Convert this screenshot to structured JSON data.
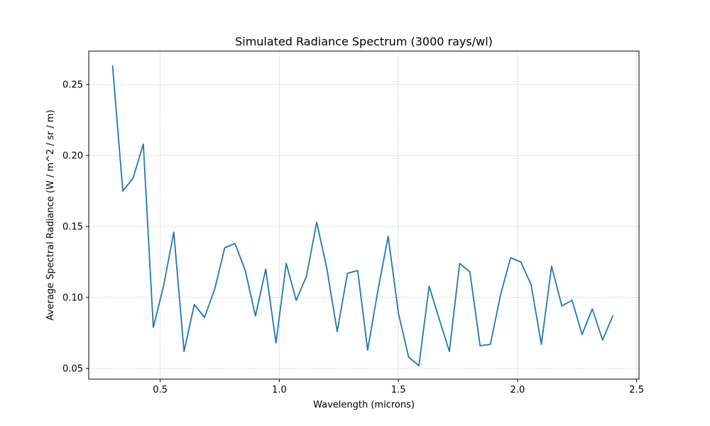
{
  "chart_data": {
    "type": "line",
    "title": "Simulated Radiance Spectrum (3000 rays/wl)",
    "xlabel": "Wavelength (microns)",
    "ylabel": "Average Spectral Radiance (W / m^2 / sr / m)",
    "xlim": [
      0.2,
      2.51
    ],
    "ylim": [
      0.0425,
      0.2735
    ],
    "xticks": [
      0.5,
      1.0,
      1.5,
      2.0,
      2.5
    ],
    "xtick_labels": [
      "0.5",
      "1.0",
      "1.5",
      "2.0",
      "2.5"
    ],
    "yticks": [
      0.05,
      0.1,
      0.15,
      0.2,
      0.25
    ],
    "ytick_labels": [
      "0.05",
      "0.10",
      "0.15",
      "0.20",
      "0.25"
    ],
    "grid": true,
    "colors": {
      "line": "#1f77b4",
      "grid": "#b0b0b0",
      "axis": "#000000"
    },
    "series": [
      {
        "x": [
          0.3,
          0.343,
          0.386,
          0.429,
          0.471,
          0.514,
          0.557,
          0.6,
          0.643,
          0.686,
          0.729,
          0.771,
          0.814,
          0.857,
          0.9,
          0.943,
          0.986,
          1.029,
          1.071,
          1.114,
          1.157,
          1.2,
          1.243,
          1.286,
          1.329,
          1.371,
          1.414,
          1.457,
          1.5,
          1.543,
          1.586,
          1.629,
          1.671,
          1.714,
          1.757,
          1.8,
          1.843,
          1.886,
          1.929,
          1.971,
          2.014,
          2.057,
          2.1,
          2.143,
          2.186,
          2.229,
          2.271,
          2.314,
          2.357,
          2.4
        ],
        "values": [
          0.263,
          0.175,
          0.184,
          0.208,
          0.079,
          0.108,
          0.146,
          0.062,
          0.095,
          0.086,
          0.106,
          0.135,
          0.138,
          0.119,
          0.087,
          0.12,
          0.068,
          0.124,
          0.098,
          0.115,
          0.153,
          0.12,
          0.076,
          0.117,
          0.119,
          0.063,
          0.105,
          0.143,
          0.089,
          0.058,
          0.052,
          0.108,
          0.085,
          0.062,
          0.124,
          0.118,
          0.066,
          0.067,
          0.102,
          0.128,
          0.125,
          0.109,
          0.067,
          0.122,
          0.094,
          0.098,
          0.074,
          0.092,
          0.07,
          0.087
        ]
      }
    ]
  }
}
